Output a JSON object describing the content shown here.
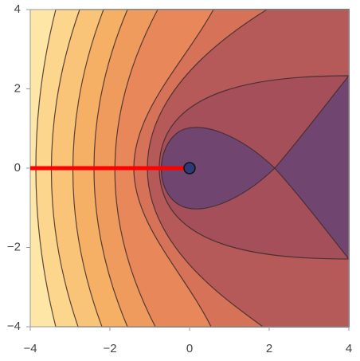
{
  "chart_data": {
    "type": "contour",
    "xlim": [
      -4,
      4
    ],
    "ylim": [
      -4,
      4
    ],
    "xticks": [
      {
        "value": -4,
        "label": "−4"
      },
      {
        "value": -2,
        "label": "−2"
      },
      0,
      2,
      4
    ],
    "yticks": [
      {
        "value": -4,
        "label": "−4"
      },
      {
        "value": -2,
        "label": "−2"
      },
      0,
      2,
      4
    ],
    "line": {
      "x": [
        -4,
        0
      ],
      "y": [
        0,
        0
      ],
      "color": "#ff0000"
    },
    "point": {
      "x": 0,
      "y": 0,
      "color": "#2e3a78"
    }
  }
}
